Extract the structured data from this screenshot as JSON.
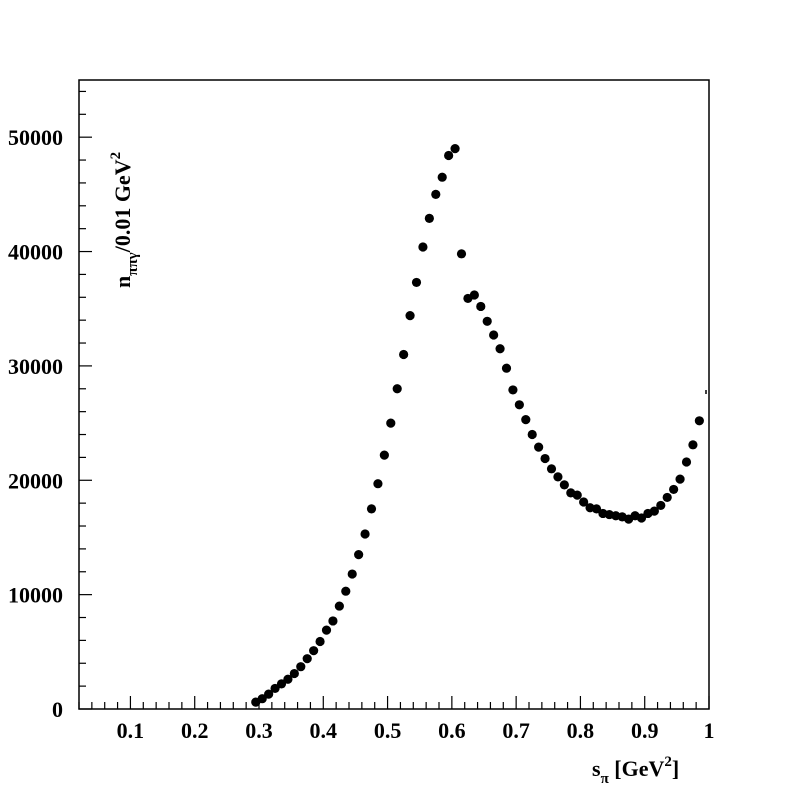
{
  "chart_data": {
    "type": "scatter",
    "xlabel": {
      "main": "s",
      "sub": "π",
      "rest": " [GeV",
      "sup": "2",
      "close": "]"
    },
    "ylabel": {
      "main": "n",
      "sub": "ππγ",
      "rest": "/0.01 GeV",
      "sup": "2"
    },
    "xlim": [
      0.02,
      1.0
    ],
    "ylim": [
      0,
      55000
    ],
    "x_ticks": [
      {
        "value": 0.1,
        "label": "0.1"
      },
      {
        "value": 0.2,
        "label": "0.2"
      },
      {
        "value": 0.3,
        "label": "0.3"
      },
      {
        "value": 0.4,
        "label": "0.4"
      },
      {
        "value": 0.5,
        "label": "0.5"
      },
      {
        "value": 0.6,
        "label": "0.6"
      },
      {
        "value": 0.7,
        "label": "0.7"
      },
      {
        "value": 0.8,
        "label": "0.8"
      },
      {
        "value": 0.9,
        "label": "0.9"
      },
      {
        "value": 1.0,
        "label": "1"
      }
    ],
    "y_ticks": [
      {
        "value": 0,
        "label": "0"
      },
      {
        "value": 10000,
        "label": "10000"
      },
      {
        "value": 20000,
        "label": "20000"
      },
      {
        "value": 30000,
        "label": "30000"
      },
      {
        "value": 40000,
        "label": "40000"
      },
      {
        "value": 50000,
        "label": "50000"
      }
    ],
    "grid": false,
    "series": [
      {
        "marker": "circle",
        "color": "#000000",
        "points": [
          [
            0.295,
            600
          ],
          [
            0.305,
            900
          ],
          [
            0.315,
            1300
          ],
          [
            0.325,
            1800
          ],
          [
            0.335,
            2200
          ],
          [
            0.345,
            2600
          ],
          [
            0.355,
            3100
          ],
          [
            0.365,
            3700
          ],
          [
            0.375,
            4400
          ],
          [
            0.385,
            5100
          ],
          [
            0.395,
            5900
          ],
          [
            0.405,
            6900
          ],
          [
            0.415,
            7700
          ],
          [
            0.425,
            9000
          ],
          [
            0.435,
            10300
          ],
          [
            0.445,
            11800
          ],
          [
            0.455,
            13500
          ],
          [
            0.465,
            15300
          ],
          [
            0.475,
            17500
          ],
          [
            0.485,
            19700
          ],
          [
            0.495,
            22200
          ],
          [
            0.505,
            25000
          ],
          [
            0.515,
            28000
          ],
          [
            0.525,
            31000
          ],
          [
            0.535,
            34400
          ],
          [
            0.545,
            37300
          ],
          [
            0.555,
            40400
          ],
          [
            0.565,
            42900
          ],
          [
            0.575,
            45000
          ],
          [
            0.585,
            46500
          ],
          [
            0.595,
            48400
          ],
          [
            0.605,
            49000
          ],
          [
            0.615,
            39800
          ],
          [
            0.625,
            35900
          ],
          [
            0.635,
            36200
          ],
          [
            0.645,
            35200
          ],
          [
            0.655,
            33900
          ],
          [
            0.665,
            32700
          ],
          [
            0.675,
            31500
          ],
          [
            0.685,
            29800
          ],
          [
            0.695,
            27900
          ],
          [
            0.705,
            26600
          ],
          [
            0.715,
            25300
          ],
          [
            0.725,
            24000
          ],
          [
            0.735,
            22900
          ],
          [
            0.745,
            21900
          ],
          [
            0.755,
            21000
          ],
          [
            0.765,
            20300
          ],
          [
            0.775,
            19600
          ],
          [
            0.785,
            18900
          ],
          [
            0.795,
            18700
          ],
          [
            0.805,
            18100
          ],
          [
            0.815,
            17600
          ],
          [
            0.825,
            17500
          ],
          [
            0.835,
            17100
          ],
          [
            0.845,
            17000
          ],
          [
            0.855,
            16900
          ],
          [
            0.865,
            16800
          ],
          [
            0.875,
            16600
          ],
          [
            0.885,
            16900
          ],
          [
            0.895,
            16700
          ],
          [
            0.905,
            17100
          ],
          [
            0.915,
            17300
          ],
          [
            0.925,
            17800
          ],
          [
            0.935,
            18500
          ],
          [
            0.945,
            19200
          ],
          [
            0.955,
            20100
          ],
          [
            0.965,
            21600
          ],
          [
            0.975,
            23100
          ],
          [
            0.985,
            25200
          ]
        ]
      }
    ]
  }
}
